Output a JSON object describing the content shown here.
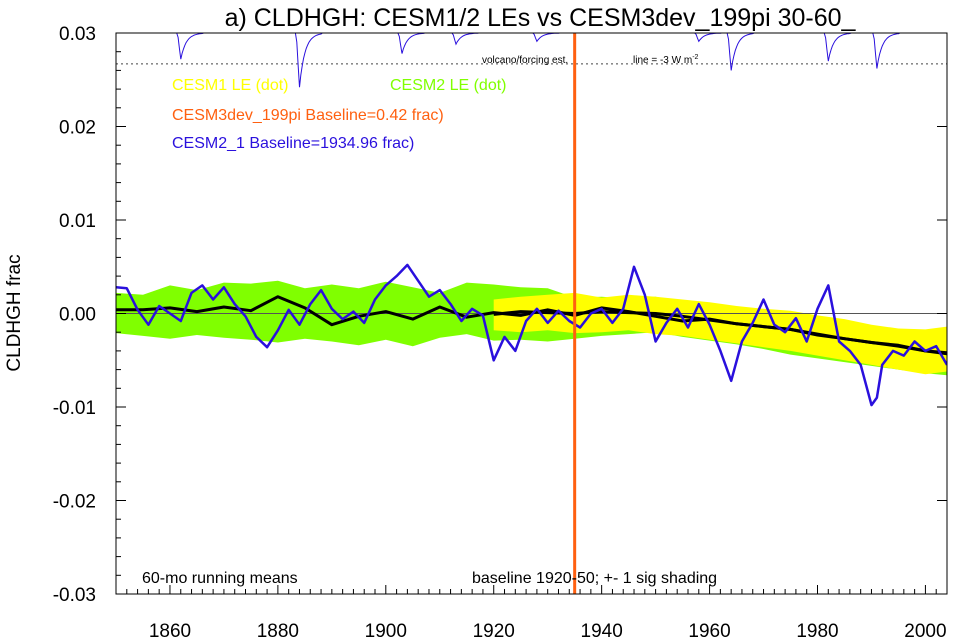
{
  "title": "a) CLDHGH: CESM1/2 LEs vs CESM3dev_199pi 30-60_",
  "colors": {
    "cesm1": "#ffff00",
    "cesm2": "#80ff00",
    "cesm3": "#ff6010",
    "cesm2_1": "#2a10dd",
    "mean": "#000000"
  },
  "legend": {
    "cesm1": "CESM1 LE (dot)",
    "cesm2": "CESM2 LE (dot)",
    "cesm3": "CESM3dev_199pi Baseline=0.42 frac)",
    "cesm2_1": "CESM2_1 Baseline=1934.96 frac)"
  },
  "annotations": {
    "volcano": "volcano/forcing est.",
    "line": "line = -3 W m",
    "line_sup": "-2",
    "running": "60-mo running means",
    "baseline": "baseline 1920-50; +- 1 sig shading"
  },
  "chart_data": {
    "type": "line",
    "title": "a) CLDHGH: CESM1/2 LEs vs CESM3dev_199pi 30-60_",
    "xlabel": "",
    "ylabel": "CLDHGH frac",
    "xlim": [
      1850,
      2004
    ],
    "ylim": [
      -0.03,
      0.03
    ],
    "x_ticks": [
      1860,
      1880,
      1900,
      1920,
      1940,
      1960,
      1980,
      2000
    ],
    "y_ticks": [
      -0.03,
      -0.02,
      -0.01,
      0.0,
      0.01,
      0.02,
      0.03
    ],
    "y_tick_labels": [
      "-0.03",
      "-0.02",
      "-0.01",
      "0.00",
      "0.01",
      "0.02",
      "0.03"
    ],
    "zero_line": 0.0,
    "marker_year": 1935,
    "volcano_threshold_y": 0.0267,
    "volcano_dips": [
      {
        "year": 1862,
        "depth": 0.0028
      },
      {
        "year": 1884,
        "depth": 0.0058
      },
      {
        "year": 1903,
        "depth": 0.0022
      },
      {
        "year": 1913,
        "depth": 0.0012
      },
      {
        "year": 1928,
        "depth": 0.0009
      },
      {
        "year": 1958,
        "depth": 0.0009
      },
      {
        "year": 1964,
        "depth": 0.004
      },
      {
        "year": 1982,
        "depth": 0.003
      },
      {
        "year": 1991,
        "depth": 0.0038
      }
    ],
    "series": [
      {
        "name": "CESM2 LE (dot)",
        "kind": "band",
        "x": [
          1850,
          1855,
          1860,
          1865,
          1870,
          1875,
          1880,
          1885,
          1890,
          1895,
          1900,
          1905,
          1910,
          1915,
          1920,
          1925,
          1930,
          1935,
          1940,
          1945,
          1950,
          1955,
          1960,
          1965,
          1970,
          1975,
          1980,
          1985,
          1990,
          1995,
          2000,
          2004
        ],
        "upper": [
          0.0022,
          0.002,
          0.003,
          0.0025,
          0.0033,
          0.0032,
          0.0035,
          0.0027,
          0.0031,
          0.0027,
          0.0034,
          0.0028,
          0.0022,
          0.0033,
          0.0031,
          0.0028,
          0.0027,
          0.0017,
          0.0018,
          0.0016,
          0.0018,
          0.0012,
          0.001,
          0.0006,
          0.0002,
          -0.0003,
          -0.0008,
          -0.0012,
          -0.0018,
          -0.0022,
          -0.0024,
          -0.0025
        ],
        "lower": [
          -0.0021,
          -0.0024,
          -0.0027,
          -0.0023,
          -0.0026,
          -0.0028,
          -0.0031,
          -0.0027,
          -0.003,
          -0.0034,
          -0.0028,
          -0.0035,
          -0.0026,
          -0.0022,
          -0.0029,
          -0.0028,
          -0.003,
          -0.0027,
          -0.0024,
          -0.0022,
          -0.002,
          -0.0025,
          -0.0029,
          -0.0033,
          -0.0038,
          -0.0044,
          -0.0048,
          -0.0052,
          -0.0056,
          -0.006,
          -0.0064,
          -0.0066
        ]
      },
      {
        "name": "CESM1 LE (dot)",
        "kind": "band",
        "x": [
          1920,
          1925,
          1930,
          1935,
          1940,
          1945,
          1950,
          1955,
          1960,
          1965,
          1970,
          1975,
          1980,
          1985,
          1990,
          1995,
          2000,
          2004
        ],
        "upper": [
          0.0015,
          0.0018,
          0.002,
          0.0022,
          0.0017,
          0.002,
          0.0018,
          0.0015,
          0.0012,
          0.0008,
          0.0005,
          0.0003,
          -0.0002,
          -0.0006,
          -0.0012,
          -0.0016,
          -0.0017,
          -0.0014
        ],
        "lower": [
          -0.0018,
          -0.002,
          -0.0018,
          -0.0021,
          -0.002,
          -0.0018,
          -0.0022,
          -0.0024,
          -0.0028,
          -0.0032,
          -0.0036,
          -0.004,
          -0.0045,
          -0.005,
          -0.0055,
          -0.006,
          -0.0065,
          -0.0062
        ]
      },
      {
        "name": "CESM1 LE mean",
        "kind": "line",
        "x": [
          1920,
          1925,
          1930,
          1935,
          1940,
          1945,
          1950,
          1955,
          1960,
          1965,
          1970,
          1975,
          1980,
          1985,
          1990,
          1995,
          2000,
          2004
        ],
        "y": [
          -0.0001,
          0.0002,
          0.0001,
          0.0,
          0.0002,
          0.0001,
          0.0,
          -0.0003,
          -0.0007,
          -0.0011,
          -0.0014,
          -0.0017,
          -0.0022,
          -0.0027,
          -0.0031,
          -0.0035,
          -0.004,
          -0.0043
        ]
      },
      {
        "name": "CESM2 LE mean",
        "kind": "line",
        "x": [
          1850,
          1855,
          1860,
          1865,
          1870,
          1875,
          1880,
          1885,
          1890,
          1895,
          1900,
          1905,
          1910,
          1915,
          1920,
          1925,
          1930,
          1935,
          1940,
          1945,
          1950,
          1955,
          1960,
          1965,
          1970,
          1975,
          1980,
          1985,
          1990,
          1995,
          2000,
          2004
        ],
        "y": [
          0.0004,
          0.0004,
          0.0006,
          0.0002,
          0.0007,
          0.0003,
          0.0018,
          0.0006,
          -0.0012,
          -0.0003,
          0.0002,
          -0.0006,
          0.0007,
          -0.0004,
          0.0001,
          -0.0002,
          0.0004,
          -0.0002,
          0.0006,
          0.0002,
          -0.0003,
          -0.0008,
          -0.0006,
          -0.0011,
          -0.0014,
          -0.0017,
          -0.0023,
          -0.0027,
          -0.0031,
          -0.0034,
          -0.004,
          -0.0042
        ]
      },
      {
        "name": "CESM2_1 Baseline=1934.96 frac)",
        "kind": "line",
        "x": [
          1850,
          1852,
          1854,
          1856,
          1858,
          1860,
          1862,
          1864,
          1866,
          1868,
          1870,
          1872,
          1874,
          1876,
          1878,
          1880,
          1882,
          1884,
          1886,
          1888,
          1890,
          1892,
          1894,
          1896,
          1898,
          1900,
          1902,
          1904,
          1906,
          1908,
          1910,
          1912,
          1914,
          1916,
          1918,
          1920,
          1922,
          1924,
          1926,
          1928,
          1930,
          1932,
          1934,
          1936,
          1938,
          1940,
          1942,
          1944,
          1946,
          1948,
          1950,
          1952,
          1954,
          1956,
          1958,
          1960,
          1962,
          1964,
          1966,
          1968,
          1970,
          1972,
          1974,
          1976,
          1978,
          1980,
          1982,
          1984,
          1986,
          1988,
          1990,
          1991,
          1992,
          1994,
          1996,
          1998,
          2000,
          2002,
          2004
        ],
        "y": [
          0.0028,
          0.0027,
          0.0004,
          -0.0012,
          0.0008,
          0.0,
          -0.0008,
          0.0022,
          0.003,
          0.0015,
          0.0028,
          0.001,
          -0.0003,
          -0.0025,
          -0.0036,
          -0.0018,
          0.0004,
          -0.0012,
          0.001,
          0.0025,
          0.0005,
          -0.0006,
          0.0002,
          -0.001,
          0.0015,
          0.003,
          0.004,
          0.0052,
          0.0035,
          0.0018,
          0.0025,
          0.001,
          -0.0008,
          0.0005,
          -0.0002,
          -0.005,
          -0.0025,
          -0.004,
          -0.0008,
          0.0005,
          -0.001,
          0.0003,
          -0.0008,
          -0.0015,
          0.0,
          0.0005,
          -0.001,
          0.0005,
          0.005,
          0.002,
          -0.003,
          -0.001,
          0.0005,
          -0.0015,
          0.001,
          -0.0012,
          -0.004,
          -0.0072,
          -0.003,
          -0.001,
          0.0015,
          -0.0012,
          -0.002,
          -0.0005,
          -0.003,
          0.0005,
          0.003,
          -0.003,
          -0.004,
          -0.0055,
          -0.0098,
          -0.009,
          -0.0055,
          -0.004,
          -0.0045,
          -0.003,
          -0.004,
          -0.0035,
          -0.0055
        ]
      }
    ]
  }
}
